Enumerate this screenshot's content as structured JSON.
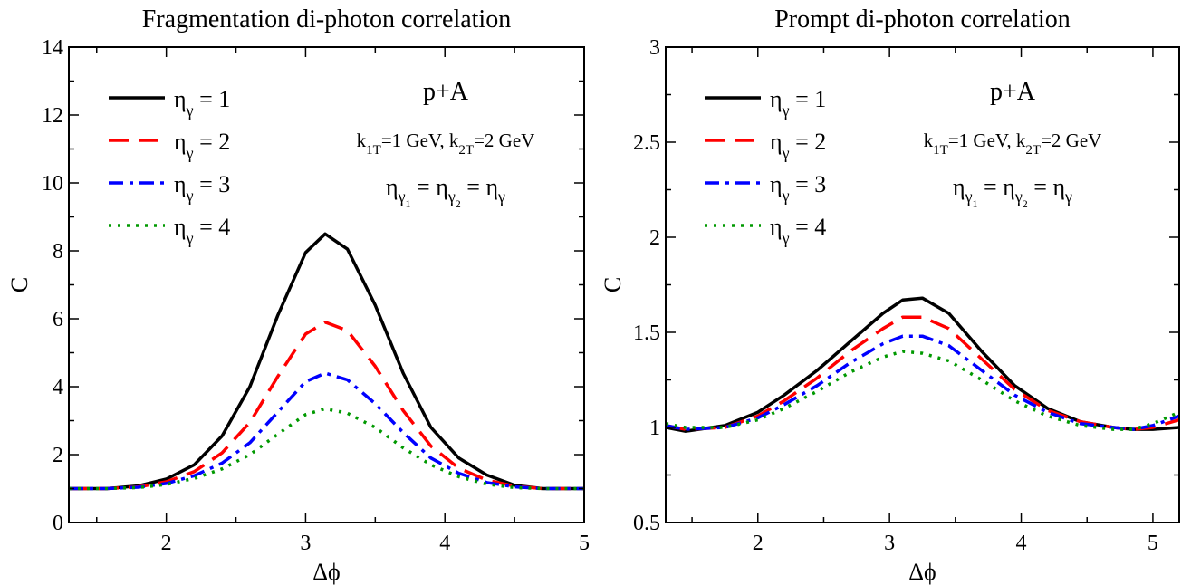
{
  "chart_data": [
    {
      "type": "line",
      "title": "Fragmentation di-photon correlation",
      "xlabel": "Δϕ",
      "ylabel": "C",
      "xlim": [
        1.3,
        5.0
      ],
      "ylim": [
        0,
        14
      ],
      "xticks": [
        2,
        3,
        4,
        5
      ],
      "yticks": [
        0,
        2,
        4,
        6,
        8,
        10,
        12,
        14
      ],
      "grid": false,
      "legend_position": "top-left",
      "annotations": {
        "system": "p+A",
        "momenta": "k1T=1 GeV, k2T=2 GeV",
        "rapidity": "ηγ1 = ηγ2 = ηγ"
      },
      "series": [
        {
          "name": "ηγ = 1",
          "color": "#000000",
          "dash": "solid",
          "x": [
            1.3,
            1.57,
            1.8,
            2.0,
            2.2,
            2.4,
            2.6,
            2.8,
            3.0,
            3.14,
            3.3,
            3.5,
            3.7,
            3.9,
            4.1,
            4.3,
            4.5,
            4.7,
            5.0
          ],
          "y": [
            1.0,
            1.0,
            1.08,
            1.28,
            1.7,
            2.55,
            4.0,
            6.1,
            7.95,
            8.5,
            8.05,
            6.4,
            4.4,
            2.8,
            1.9,
            1.4,
            1.1,
            1.0,
            1.0
          ]
        },
        {
          "name": "ηγ = 2",
          "color": "#ff0000",
          "dash": "long-dash",
          "x": [
            1.3,
            1.57,
            1.8,
            2.0,
            2.2,
            2.4,
            2.6,
            2.8,
            3.0,
            3.14,
            3.3,
            3.5,
            3.7,
            3.9,
            4.1,
            4.3,
            4.5,
            4.7,
            5.0
          ],
          "y": [
            1.0,
            1.0,
            1.05,
            1.2,
            1.5,
            2.05,
            2.95,
            4.3,
            5.55,
            5.9,
            5.65,
            4.6,
            3.3,
            2.25,
            1.6,
            1.25,
            1.07,
            1.0,
            1.0
          ]
        },
        {
          "name": "ηγ = 3",
          "color": "#0000ff",
          "dash": "dash-dot",
          "x": [
            1.3,
            1.57,
            1.8,
            2.0,
            2.2,
            2.4,
            2.6,
            2.8,
            3.0,
            3.14,
            3.3,
            3.5,
            3.7,
            3.9,
            4.1,
            4.3,
            4.5,
            4.7,
            5.0
          ],
          "y": [
            1.0,
            1.0,
            1.04,
            1.15,
            1.38,
            1.75,
            2.35,
            3.25,
            4.15,
            4.4,
            4.2,
            3.5,
            2.65,
            1.9,
            1.45,
            1.18,
            1.05,
            1.0,
            1.0
          ]
        },
        {
          "name": "ηγ = 4",
          "color": "#009900",
          "dash": "dotted",
          "x": [
            1.3,
            1.57,
            1.8,
            2.0,
            2.2,
            2.4,
            2.6,
            2.8,
            3.0,
            3.14,
            3.3,
            3.5,
            3.7,
            3.9,
            4.1,
            4.3,
            4.5,
            4.7,
            5.0
          ],
          "y": [
            1.0,
            1.0,
            1.03,
            1.12,
            1.3,
            1.58,
            2.0,
            2.6,
            3.18,
            3.35,
            3.22,
            2.8,
            2.2,
            1.7,
            1.35,
            1.13,
            1.03,
            1.0,
            1.0
          ]
        }
      ]
    },
    {
      "type": "line",
      "title": "Prompt di-photon correlation",
      "xlabel": "Δϕ",
      "ylabel": "C",
      "xlim": [
        1.3,
        5.2
      ],
      "ylim": [
        0.5,
        3
      ],
      "xticks": [
        2,
        3,
        4,
        5
      ],
      "yticks": [
        0.5,
        1,
        1.5,
        2,
        2.5,
        3
      ],
      "grid": false,
      "legend_position": "top-left",
      "annotations": {
        "system": "p+A",
        "momenta": "k1T=1 GeV, k2T=2 GeV",
        "rapidity": "ηγ1 = ηγ2 = ηγ"
      },
      "series": [
        {
          "name": "ηγ = 1",
          "color": "#000000",
          "dash": "solid",
          "x": [
            1.3,
            1.45,
            1.75,
            2.0,
            2.2,
            2.45,
            2.7,
            2.95,
            3.1,
            3.25,
            3.45,
            3.7,
            3.95,
            4.2,
            4.45,
            4.7,
            4.85,
            5.0,
            5.2
          ],
          "y": [
            1.0,
            0.98,
            1.01,
            1.08,
            1.17,
            1.3,
            1.45,
            1.6,
            1.67,
            1.68,
            1.6,
            1.4,
            1.22,
            1.1,
            1.03,
            1.0,
            0.99,
            0.99,
            1.0
          ]
        },
        {
          "name": "ηγ = 2",
          "color": "#ff0000",
          "dash": "long-dash",
          "x": [
            1.3,
            1.45,
            1.75,
            2.0,
            2.2,
            2.45,
            2.7,
            2.95,
            3.1,
            3.25,
            3.45,
            3.7,
            3.95,
            4.2,
            4.45,
            4.7,
            4.85,
            5.0,
            5.2
          ],
          "y": [
            1.01,
            0.99,
            1.0,
            1.06,
            1.14,
            1.26,
            1.4,
            1.52,
            1.58,
            1.58,
            1.52,
            1.36,
            1.2,
            1.09,
            1.03,
            1.0,
            0.99,
            1.0,
            1.04
          ]
        },
        {
          "name": "ηγ = 3",
          "color": "#0000ff",
          "dash": "dash-dot",
          "x": [
            1.3,
            1.45,
            1.75,
            2.0,
            2.2,
            2.45,
            2.7,
            2.95,
            3.1,
            3.25,
            3.45,
            3.7,
            3.95,
            4.2,
            4.45,
            4.7,
            4.85,
            5.0,
            5.2
          ],
          "y": [
            1.01,
            0.99,
            1.0,
            1.05,
            1.12,
            1.22,
            1.34,
            1.44,
            1.48,
            1.48,
            1.43,
            1.3,
            1.17,
            1.08,
            1.02,
            1.0,
            0.99,
            1.01,
            1.06
          ]
        },
        {
          "name": "ηγ = 4",
          "color": "#009900",
          "dash": "dotted",
          "x": [
            1.3,
            1.45,
            1.75,
            2.0,
            2.2,
            2.45,
            2.7,
            2.95,
            3.1,
            3.25,
            3.45,
            3.7,
            3.95,
            4.2,
            4.45,
            4.7,
            4.85,
            5.0,
            5.2
          ],
          "y": [
            1.02,
            1.0,
            1.0,
            1.04,
            1.1,
            1.19,
            1.29,
            1.37,
            1.4,
            1.39,
            1.35,
            1.25,
            1.14,
            1.06,
            1.01,
            0.99,
            0.99,
            1.02,
            1.08
          ]
        }
      ]
    }
  ]
}
